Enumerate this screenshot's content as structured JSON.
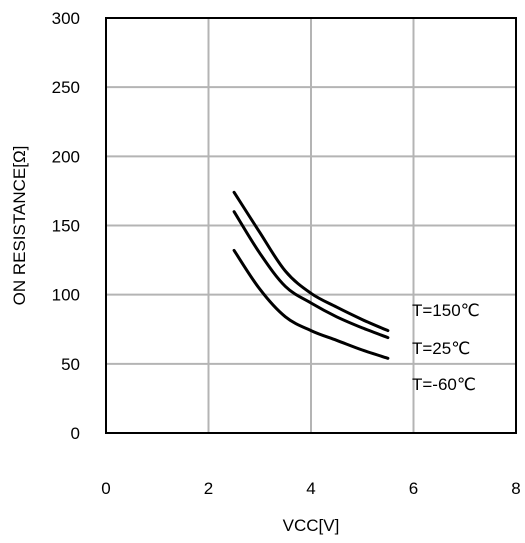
{
  "chart_data": {
    "type": "line",
    "title": "",
    "xlabel": "VCC[V]",
    "ylabel": "ON RESISTANCE[Ω]",
    "xlim": [
      0,
      8
    ],
    "ylim": [
      0,
      300
    ],
    "xticks": [
      0,
      2,
      4,
      6,
      8
    ],
    "yticks": [
      0,
      50,
      100,
      150,
      200,
      250,
      300
    ],
    "grid": true,
    "series": [
      {
        "name": "T=150℃",
        "x": [
          2.5,
          3.0,
          3.5,
          4.0,
          4.5,
          5.0,
          5.5
        ],
        "y": [
          174,
          145,
          117,
          101,
          91,
          82,
          74
        ]
      },
      {
        "name": "T=25℃",
        "x": [
          2.5,
          3.0,
          3.5,
          4.0,
          4.5,
          5.0,
          5.5
        ],
        "y": [
          160,
          130,
          106,
          94,
          84,
          76,
          69
        ]
      },
      {
        "name": "T=-60℃",
        "x": [
          2.5,
          3.0,
          3.5,
          4.0,
          4.5,
          5.0,
          5.5
        ],
        "y": [
          132,
          104,
          84,
          74,
          67,
          60,
          54
        ]
      }
    ]
  }
}
